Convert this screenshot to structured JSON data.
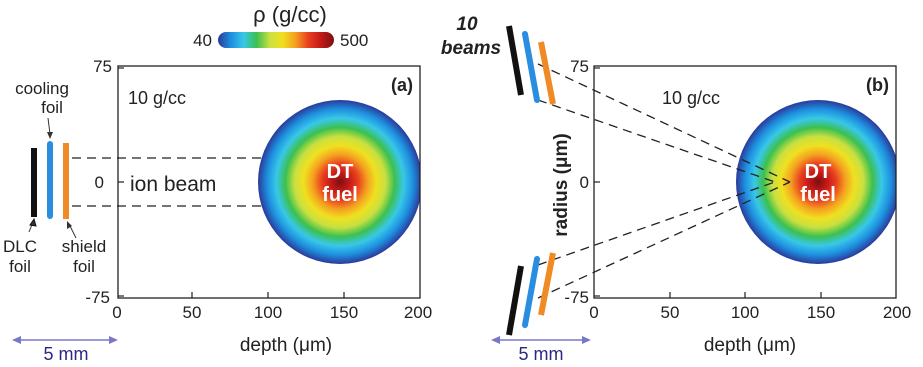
{
  "colorbar": {
    "symbol": "ρ (g/cc)",
    "min_label": "40",
    "max_label": "500",
    "colors": [
      "#2a3a9a",
      "#1e90e0",
      "#38c8e8",
      "#3cc050",
      "#c8e040",
      "#f0e020",
      "#f5a020",
      "#e84020",
      "#c41818",
      "#7a1010"
    ]
  },
  "colors": {
    "dlc_foil": "#111111",
    "cooling_foil": "#2a8ee0",
    "shield_foil": "#f08a24",
    "scale_arrow": "#7878c8",
    "scale_text": "#2a2a80"
  },
  "panel_a": {
    "label": "(a)",
    "density_text": "10 g/cc",
    "fuel_text": [
      "DT",
      "fuel"
    ],
    "beam_label": "ion beam",
    "foil_labels": {
      "cooling": [
        "cooling",
        "foil"
      ],
      "dlc": [
        "DLC",
        "foil"
      ],
      "shield": [
        "shield",
        "foil"
      ]
    },
    "xlabel": "depth (μm)",
    "xticks": [
      "0",
      "50",
      "100",
      "150",
      "200"
    ],
    "yticks": [
      "75",
      "0",
      "-75"
    ],
    "scale_bar": "5 mm"
  },
  "panel_b": {
    "label": "(b)",
    "density_text": "10 g/cc",
    "fuel_text": [
      "DT",
      "fuel"
    ],
    "beams_label": [
      "10",
      "beams"
    ],
    "xlabel": "depth (μm)",
    "ylabel": "radius (μm)",
    "xticks": [
      "0",
      "50",
      "100",
      "150",
      "200"
    ],
    "yticks": [
      "75",
      "0",
      "-75"
    ],
    "scale_bar": "5 mm"
  }
}
